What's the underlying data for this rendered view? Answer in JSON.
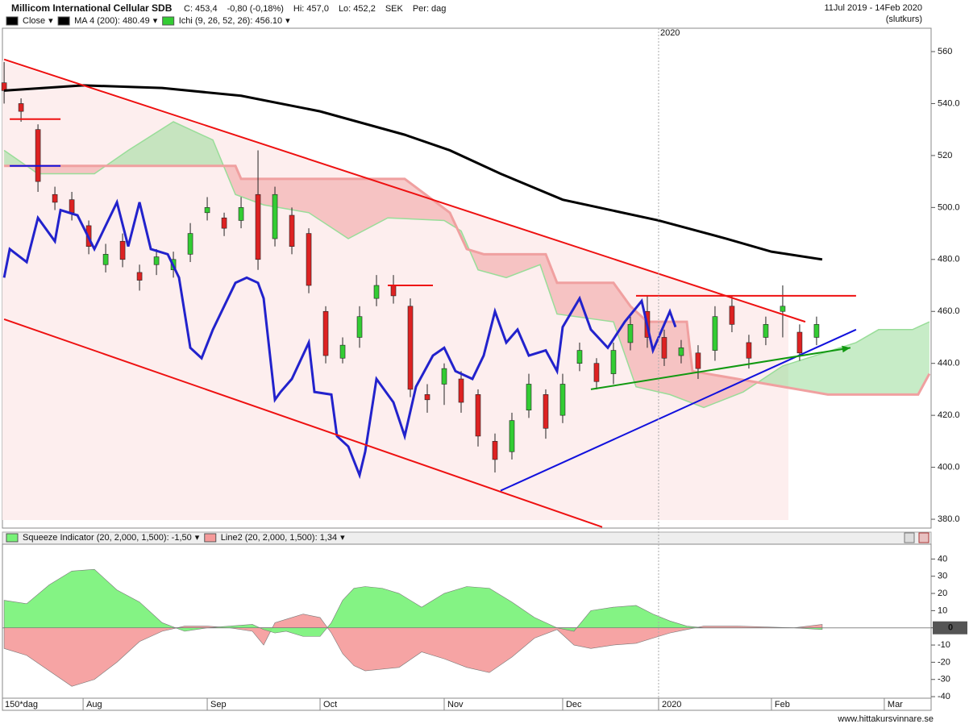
{
  "chart_data": [
    {
      "type": "candlestick",
      "title": "Millicom International Cellular SDB",
      "info": [
        "C: 453,4",
        "-0,80 (-0,18%)",
        "Hi: 457,0",
        "Lo: 452,2",
        "SEK",
        "Per: dag"
      ],
      "date_range": "11Jul 2019 - 14Feb 2020",
      "price_note": "(slutkurs)",
      "xlim": [
        -0.3,
        164.3
      ],
      "ylim": [
        376.6,
        569
      ],
      "yticks": [
        560,
        {
          "value": 540,
          "label": "540.0"
        },
        520,
        {
          "value": 500,
          "label": "500.0"
        },
        {
          "value": 480,
          "label": "480.0"
        },
        {
          "value": 460,
          "label": "460.0"
        },
        {
          "value": 440,
          "label": "440.0"
        },
        {
          "value": 420,
          "label": "420.0"
        },
        {
          "value": 400,
          "label": "400.0"
        },
        {
          "value": 380,
          "label": "380.0"
        }
      ],
      "xticks": [
        {
          "value": 116,
          "label": "2020"
        }
      ],
      "candles": {
        "name": "Close",
        "color": "#000000",
        "up_color": "#33cc33",
        "down_color": "#dd2222",
        "x": [
          0,
          3,
          6,
          9,
          12,
          15,
          18,
          21,
          24,
          27,
          30,
          33,
          36,
          39,
          42,
          45,
          48,
          51,
          54,
          57,
          60,
          63,
          66,
          69,
          72,
          75,
          78,
          81,
          84,
          87,
          90,
          93,
          96,
          99,
          102,
          105,
          108,
          111,
          114,
          117,
          120,
          123,
          126,
          129,
          132,
          135,
          138,
          141,
          144
        ],
        "open": [
          548,
          540,
          530,
          505,
          503,
          493,
          478,
          487,
          475,
          478,
          476,
          482,
          498,
          496,
          495,
          505,
          488,
          497,
          490,
          460,
          442,
          450,
          465,
          470,
          462,
          428,
          432,
          434,
          428,
          410,
          406,
          422,
          428,
          420,
          440,
          440,
          436,
          448,
          460,
          450,
          443,
          444,
          445,
          462,
          448,
          450,
          460,
          452,
          450
        ],
        "high": [
          556,
          542,
          532,
          508,
          506,
          495,
          486,
          490,
          478,
          484,
          483,
          494,
          504,
          498,
          504,
          522,
          508,
          500,
          492,
          462,
          450,
          462,
          474,
          474,
          465,
          432,
          440,
          437,
          430,
          413,
          421,
          436,
          430,
          436,
          448,
          442,
          448,
          458,
          466,
          453,
          449,
          447,
          462,
          466,
          451,
          458,
          470,
          455,
          458
        ],
        "low": [
          540,
          533,
          506,
          499,
          495,
          482,
          475,
          477,
          468,
          474,
          473,
          479,
          495,
          489,
          492,
          476,
          485,
          482,
          467,
          440,
          440,
          446,
          462,
          463,
          427,
          421,
          424,
          421,
          408,
          398,
          403,
          419,
          411,
          417,
          437,
          430,
          432,
          445,
          446,
          439,
          440,
          434,
          441,
          452,
          438,
          447,
          450,
          441,
          447
        ],
        "close": [
          545,
          537,
          510,
          502,
          498,
          485,
          482,
          480,
          472,
          481,
          480,
          490,
          500,
          492,
          500,
          480,
          505,
          485,
          470,
          443,
          447,
          458,
          470,
          466,
          430,
          426,
          438,
          425,
          412,
          403,
          418,
          432,
          415,
          432,
          445,
          433,
          445,
          455,
          450,
          442,
          446,
          438,
          458,
          455,
          442,
          455,
          462,
          444,
          455
        ]
      },
      "series": [
        {
          "name": "MA 4 (200): 480.49",
          "color": "#000000",
          "x": [
            0,
            14,
            28,
            42,
            56,
            71,
            79,
            88,
            99,
            116,
            128,
            136,
            145
          ],
          "values": [
            545,
            547,
            546,
            543,
            537,
            528,
            522,
            513,
            503,
            495,
            488,
            483,
            480
          ]
        },
        {
          "color": "#2222cc",
          "x": [
            0,
            1,
            4,
            6,
            9,
            10,
            13,
            16,
            18,
            20,
            22,
            24,
            26,
            29,
            31,
            33,
            35,
            37,
            41,
            43,
            45,
            46,
            48,
            49,
            51,
            54,
            55,
            58,
            59,
            61,
            63,
            64,
            66,
            69,
            71,
            73,
            76,
            78,
            80,
            83,
            85,
            87,
            89,
            91,
            93,
            96,
            98,
            99,
            102,
            104,
            107,
            110,
            113,
            115,
            118,
            119
          ],
          "values": [
            473,
            484,
            479,
            496,
            487,
            499,
            497,
            484,
            493,
            502,
            485,
            502,
            484,
            482,
            473,
            446,
            442,
            453,
            471,
            473,
            471,
            465,
            426,
            429,
            434,
            448,
            429,
            428,
            412,
            408,
            397,
            406,
            434,
            425,
            412,
            431,
            443,
            446,
            437,
            434,
            443,
            460,
            448,
            453,
            443,
            445,
            437,
            454,
            465,
            453,
            446,
            456,
            464,
            445,
            460,
            454
          ]
        }
      ],
      "cloud": {
        "name": "Ichi (9, 26, 52, 26): 456.10",
        "color": "#33cc33",
        "span_a": {
          "color": "#99dd99",
          "x": [
            0,
            6,
            16,
            22,
            30,
            37,
            41,
            46,
            54,
            61,
            68,
            78,
            81,
            84,
            89,
            95,
            98,
            108,
            112,
            118,
            124,
            131,
            138,
            151,
            155,
            161,
            164
          ],
          "values": [
            522,
            513,
            513,
            522,
            533,
            526,
            505,
            501,
            498,
            488,
            496,
            495,
            491,
            476,
            473,
            478,
            459,
            456,
            431,
            428,
            423,
            429,
            439,
            448,
            453,
            453,
            456
          ]
        },
        "span_b": {
          "color": "#f0a0a0",
          "x": [
            0,
            41,
            42,
            71,
            79,
            82,
            85,
            96,
            98,
            108,
            111,
            114,
            121,
            122,
            146,
            162,
            164
          ],
          "values": [
            516,
            516,
            511,
            511,
            498,
            484,
            482,
            482,
            471,
            471,
            462,
            456,
            456,
            437,
            428,
            428,
            436
          ]
        }
      },
      "lines": [
        {
          "color": "#ee1111",
          "x": [
            0,
            142
          ],
          "values": [
            557,
            456
          ]
        },
        {
          "color": "#ee1111",
          "x": [
            0,
            106
          ],
          "values": [
            457,
            377
          ]
        },
        {
          "color": "#1111dd",
          "x": [
            88,
            151
          ],
          "values": [
            391,
            453
          ]
        },
        {
          "color": "#119911",
          "x": [
            104,
            150
          ],
          "values": [
            430,
            446
          ],
          "arrow": true
        },
        {
          "color": "#ee1111",
          "x": [
            112,
            151
          ],
          "values": [
            466,
            466
          ]
        },
        {
          "color": "#ee1111",
          "x": [
            1,
            10
          ],
          "values": [
            534,
            534
          ]
        },
        {
          "color": "#1111dd",
          "x": [
            1,
            10
          ],
          "values": [
            516,
            516
          ]
        },
        {
          "color": "#ee1111",
          "x": [
            68,
            76
          ],
          "values": [
            470,
            470
          ]
        }
      ]
    },
    {
      "type": "area",
      "xlim": [
        -0.3,
        164.3
      ],
      "ylim": [
        -40.9,
        48.6
      ],
      "yticks": [
        40,
        30,
        20,
        10,
        0,
        -10,
        -20,
        -30,
        -40
      ],
      "period_label": "150*dag",
      "xticks": [
        {
          "value": 14,
          "label": "Aug"
        },
        {
          "value": 36,
          "label": "Sep"
        },
        {
          "value": 56,
          "label": "Oct"
        },
        {
          "value": 78,
          "label": "Nov"
        },
        {
          "value": 99,
          "label": "Dec"
        },
        {
          "value": 116,
          "label": "2020"
        },
        {
          "value": 136,
          "label": "Feb"
        },
        {
          "value": 156,
          "label": "Mar"
        }
      ],
      "series": [
        {
          "name": "Line2 (20, 2,000, 1,500): 1,34",
          "color": "#f59a9a",
          "x": [
            0,
            4,
            8,
            12,
            16,
            20,
            24,
            28,
            32,
            36,
            40,
            44,
            46,
            48,
            50,
            53,
            56,
            58,
            60,
            62,
            64,
            67,
            70,
            74,
            78,
            82,
            86,
            90,
            94,
            98,
            101,
            104,
            108,
            112,
            115,
            118,
            121,
            124,
            130,
            140,
            145
          ],
          "values": [
            -12,
            -16,
            -25,
            -34,
            -30,
            -20,
            -8,
            -2,
            1,
            1,
            0,
            -2,
            -10,
            3,
            5,
            8,
            6,
            -3,
            -15,
            -22,
            -25,
            -24,
            -23,
            -14,
            -18,
            -23,
            -26,
            -17,
            -6,
            -1,
            -10,
            -12,
            -10,
            -9,
            -6,
            -3,
            -1,
            1,
            1,
            0,
            2
          ]
        },
        {
          "name": "Squeeze Indicator (20, 2,000, 1,500): -1,50",
          "color": "#77f277",
          "x": [
            0,
            4,
            8,
            12,
            16,
            20,
            24,
            28,
            32,
            36,
            40,
            44,
            46,
            48,
            50,
            53,
            56,
            58,
            60,
            62,
            64,
            67,
            70,
            74,
            78,
            82,
            86,
            90,
            94,
            98,
            101,
            104,
            108,
            112,
            115,
            118,
            121,
            124,
            130,
            140,
            145
          ],
          "values": [
            16,
            14,
            25,
            33,
            34,
            22,
            15,
            3,
            -2,
            0,
            1,
            2,
            -1,
            -3,
            -2,
            -5,
            -5,
            3,
            16,
            23,
            24,
            23,
            20,
            12,
            20,
            24,
            23,
            15,
            6,
            0,
            -2,
            10,
            12,
            13,
            8,
            4,
            1,
            0,
            0,
            0,
            -1
          ]
        }
      ]
    }
  ],
  "footer": "www.hittakursvinnare.se"
}
